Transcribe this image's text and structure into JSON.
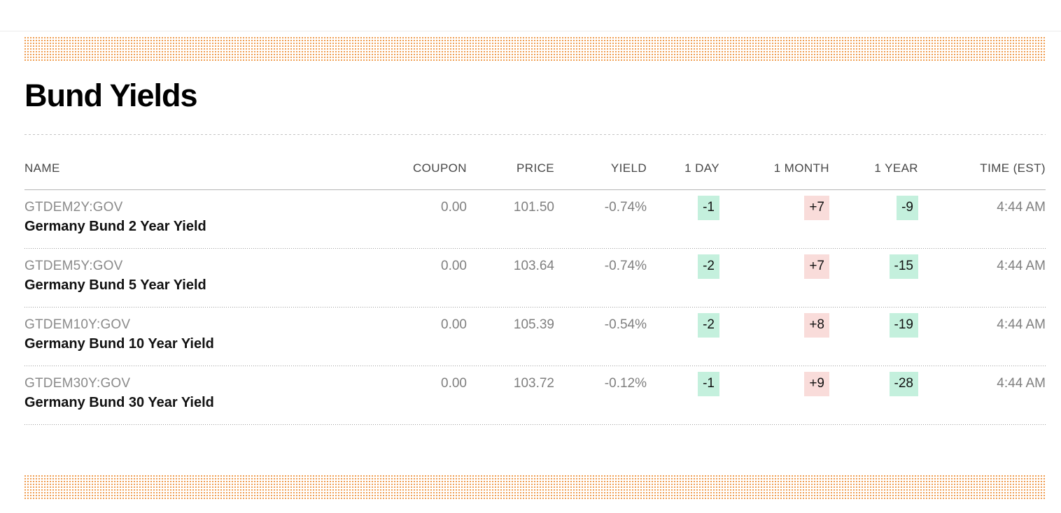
{
  "page": {
    "title": "Bund Yields"
  },
  "colors": {
    "accent_orange_dots": "#F09D50",
    "badge_negative_green": "#C4F0DD",
    "badge_positive_pink": "#F9DCDA",
    "header_text": "#474747",
    "muted_text": "#7F7F7F"
  },
  "table": {
    "columns": {
      "name": "NAME",
      "coupon": "COUPON",
      "price": "PRICE",
      "yield": "YIELD",
      "day1": "1 DAY",
      "month1": "1 MONTH",
      "year1": "1 YEAR",
      "time": "TIME (EST)"
    },
    "rows": [
      {
        "ticker": "GTDEM2Y:GOV",
        "name": "Germany Bund 2 Year Yield",
        "coupon": "0.00",
        "price": "101.50",
        "yield": "-0.74%",
        "day1": "-1",
        "month1": "+7",
        "year1": "-9",
        "time": "4:44 AM"
      },
      {
        "ticker": "GTDEM5Y:GOV",
        "name": "Germany Bund 5 Year Yield",
        "coupon": "0.00",
        "price": "103.64",
        "yield": "-0.74%",
        "day1": "-2",
        "month1": "+7",
        "year1": "-15",
        "time": "4:44 AM"
      },
      {
        "ticker": "GTDEM10Y:GOV",
        "name": "Germany Bund 10 Year Yield",
        "coupon": "0.00",
        "price": "105.39",
        "yield": "-0.54%",
        "day1": "-2",
        "month1": "+8",
        "year1": "-19",
        "time": "4:44 AM"
      },
      {
        "ticker": "GTDEM30Y:GOV",
        "name": "Germany Bund 30 Year Yield",
        "coupon": "0.00",
        "price": "103.72",
        "yield": "-0.12%",
        "day1": "-1",
        "month1": "+9",
        "year1": "-28",
        "time": "4:44 AM"
      }
    ]
  }
}
